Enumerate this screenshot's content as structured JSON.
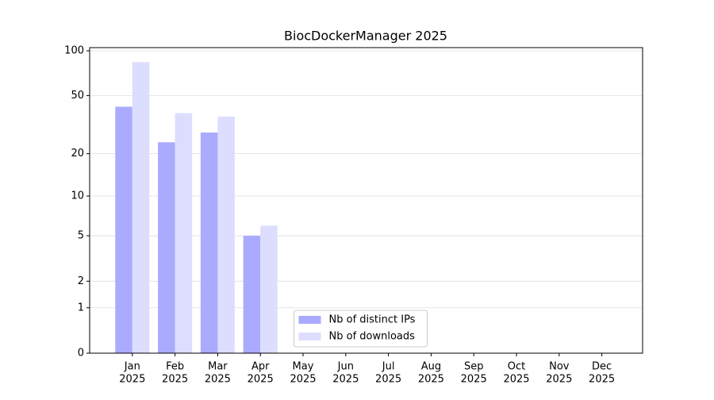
{
  "chart_data": {
    "type": "bar",
    "title": "BiocDockerManager 2025",
    "categories": [
      [
        "Jan",
        "2025"
      ],
      [
        "Feb",
        "2025"
      ],
      [
        "Mar",
        "2025"
      ],
      [
        "Apr",
        "2025"
      ],
      [
        "May",
        "2025"
      ],
      [
        "Jun",
        "2025"
      ],
      [
        "Jul",
        "2025"
      ],
      [
        "Aug",
        "2025"
      ],
      [
        "Sep",
        "2025"
      ],
      [
        "Oct",
        "2025"
      ],
      [
        "Nov",
        "2025"
      ],
      [
        "Dec",
        "2025"
      ]
    ],
    "series": [
      {
        "name": "Nb of distinct IPs",
        "color": "#aaaaff",
        "values": [
          42,
          24,
          28,
          5,
          null,
          null,
          null,
          null,
          null,
          null,
          null,
          null
        ]
      },
      {
        "name": "Nb of downloads",
        "color": "#ddddff",
        "values": [
          84,
          38,
          36,
          6,
          null,
          null,
          null,
          null,
          null,
          null,
          null,
          null
        ]
      }
    ],
    "yscale": "log1p",
    "ylim": [
      0,
      105
    ],
    "yticks": [
      0,
      1,
      2,
      5,
      10,
      20,
      50,
      100
    ],
    "grid": true,
    "legend": "lower center"
  }
}
